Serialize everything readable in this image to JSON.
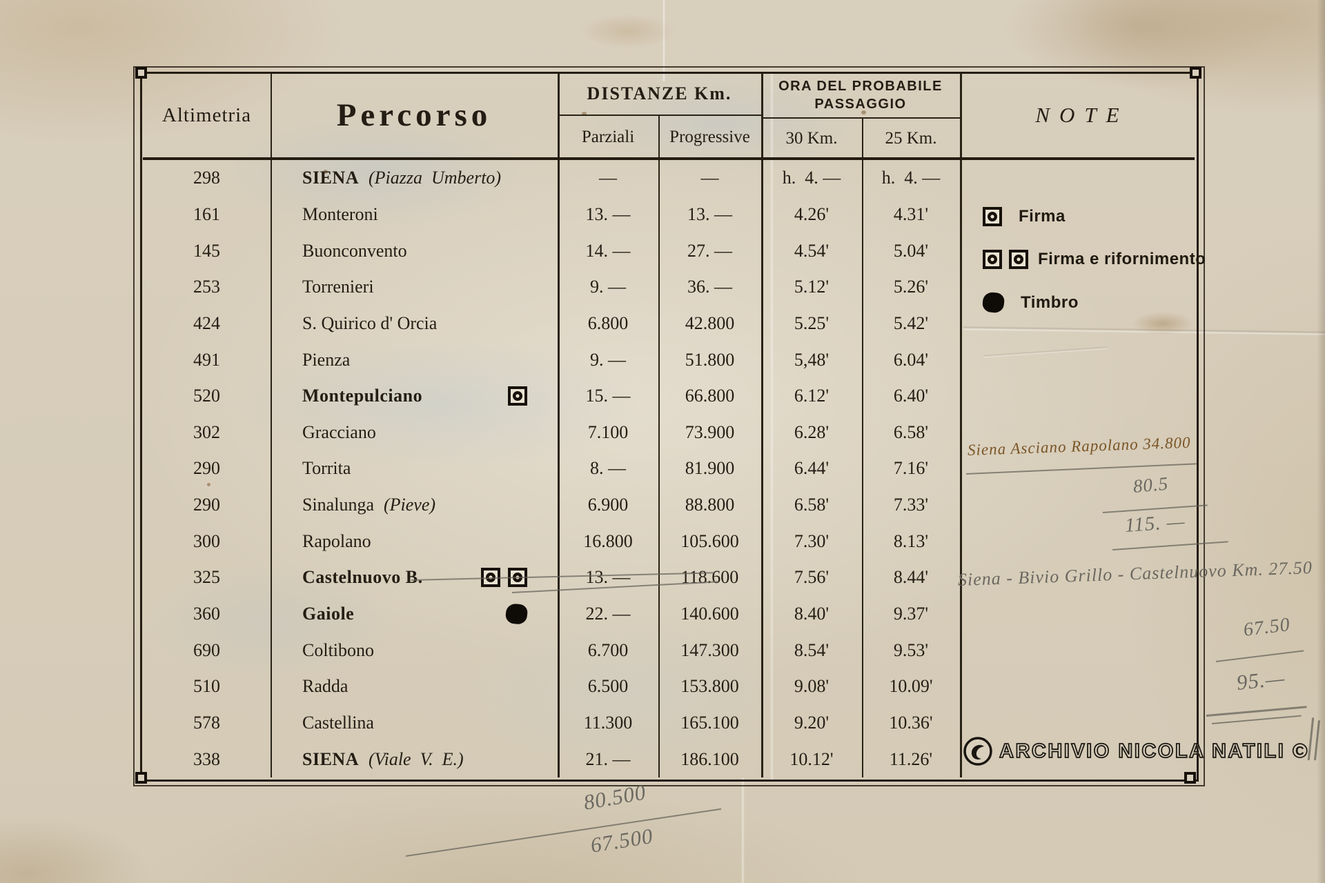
{
  "table": {
    "headers": {
      "altimetria": "Altimetria",
      "percorso": "Percorso",
      "distanze": "DISTANZE  Km.",
      "parziali": "Parziali",
      "progressive": "Progressive",
      "ora_line1": "ORA  DEL  PROBABILE",
      "ora_line2": "PASSAGGIO",
      "km30": "30  Km.",
      "km25": "25  Km.",
      "note": "NOTE"
    },
    "rows": [
      {
        "alt": "298",
        "name": "SIENA",
        "detail": "(Piazza  Umberto)",
        "bold": true,
        "markers": [],
        "parziali": "—",
        "progressive": "—",
        "km30": "h.  4. —",
        "km25": "h.  4. —"
      },
      {
        "alt": "161",
        "name": "Monteroni",
        "detail": "",
        "bold": false,
        "markers": [],
        "parziali": "13. —",
        "progressive": "13. —",
        "km30": "4.26'",
        "km25": "4.31'"
      },
      {
        "alt": "145",
        "name": "Buonconvento",
        "detail": "",
        "bold": false,
        "markers": [],
        "parziali": "14. —",
        "progressive": "27. —",
        "km30": "4.54'",
        "km25": "5.04'"
      },
      {
        "alt": "253",
        "name": "Torrenieri",
        "detail": "",
        "bold": false,
        "markers": [],
        "parziali": "9. —",
        "progressive": "36. —",
        "km30": "5.12'",
        "km25": "5.26'"
      },
      {
        "alt": "424",
        "name": "S. Quirico d' Orcia",
        "detail": "",
        "bold": false,
        "markers": [],
        "parziali": "6.800",
        "progressive": "42.800",
        "km30": "5.25'",
        "km25": "5.42'"
      },
      {
        "alt": "491",
        "name": "Pienza",
        "detail": "",
        "bold": false,
        "markers": [],
        "parziali": "9. —",
        "progressive": "51.800",
        "km30": "5,48'",
        "km25": "6.04'"
      },
      {
        "alt": "520",
        "name": "Montepulciano",
        "detail": "",
        "bold": true,
        "markers": [
          "firma"
        ],
        "parziali": "15. —",
        "progressive": "66.800",
        "km30": "6.12'",
        "km25": "6.40'"
      },
      {
        "alt": "302",
        "name": "Gracciano",
        "detail": "",
        "bold": false,
        "markers": [],
        "parziali": "7.100",
        "progressive": "73.900",
        "km30": "6.28'",
        "km25": "6.58'"
      },
      {
        "alt": "290",
        "name": "Torrita",
        "detail": "",
        "bold": false,
        "markers": [],
        "parziali": "8. —",
        "progressive": "81.900",
        "km30": "6.44'",
        "km25": "7.16'"
      },
      {
        "alt": "290",
        "name": "Sinalunga",
        "detail": "(Pieve)",
        "bold": false,
        "markers": [],
        "parziali": "6.900",
        "progressive": "88.800",
        "km30": "6.58'",
        "km25": "7.33'"
      },
      {
        "alt": "300",
        "name": "Rapolano",
        "detail": "",
        "bold": false,
        "markers": [],
        "parziali": "16.800",
        "progressive": "105.600",
        "km30": "7.30'",
        "km25": "8.13'"
      },
      {
        "alt": "325",
        "name": "Castelnuovo B.",
        "detail": "",
        "bold": true,
        "markers": [
          "firma",
          "firma"
        ],
        "parziali": "13. —",
        "progressive": "118.600",
        "km30": "7.56'",
        "km25": "8.44'"
      },
      {
        "alt": "360",
        "name": "Gaiole",
        "detail": "",
        "bold": true,
        "markers": [
          "timbro"
        ],
        "parziali": "22. —",
        "progressive": "140.600",
        "km30": "8.40'",
        "km25": "9.37'"
      },
      {
        "alt": "690",
        "name": "Coltibono",
        "detail": "",
        "bold": false,
        "markers": [],
        "parziali": "6.700",
        "progressive": "147.300",
        "km30": "8.54'",
        "km25": "9.53'"
      },
      {
        "alt": "510",
        "name": "Radda",
        "detail": "",
        "bold": false,
        "markers": [],
        "parziali": "6.500",
        "progressive": "153.800",
        "km30": "9.08'",
        "km25": "10.09'"
      },
      {
        "alt": "578",
        "name": "Castellina",
        "detail": "",
        "bold": false,
        "markers": [],
        "parziali": "11.300",
        "progressive": "165.100",
        "km30": "9.20'",
        "km25": "10.36'"
      },
      {
        "alt": "338",
        "name": "SIENA",
        "detail": "(Viale  V.  E.)",
        "bold": true,
        "markers": [],
        "parziali": "21. —",
        "progressive": "186.100",
        "km30": "10.12'",
        "km25": "11.26'"
      }
    ]
  },
  "legend": {
    "firma": {
      "label": "Firma"
    },
    "firma_rifornimento": {
      "label": "Firma  e  rifornimento"
    },
    "timbro": {
      "label": "Timbro"
    }
  },
  "annotations": {
    "ink_route": "Siena Asciano Rapolano 34.800",
    "pencil_a": "80.5",
    "pencil_b": "115. —",
    "pencil_route": "Siena - Bivio Grillo - Castelnuovo Km. 27.50",
    "pencil_c": "67.50",
    "pencil_d": "95.—",
    "pencil_e": "80.500",
    "pencil_f": "67.500"
  },
  "watermark": {
    "text": "ARCHIVIO NICOLA NATILI",
    "symbol": "©"
  },
  "colors": {
    "paper": "#d8cebb",
    "ink": "#241d14",
    "sepia_ink": "#7a5526",
    "pencil": "#6b6860"
  }
}
